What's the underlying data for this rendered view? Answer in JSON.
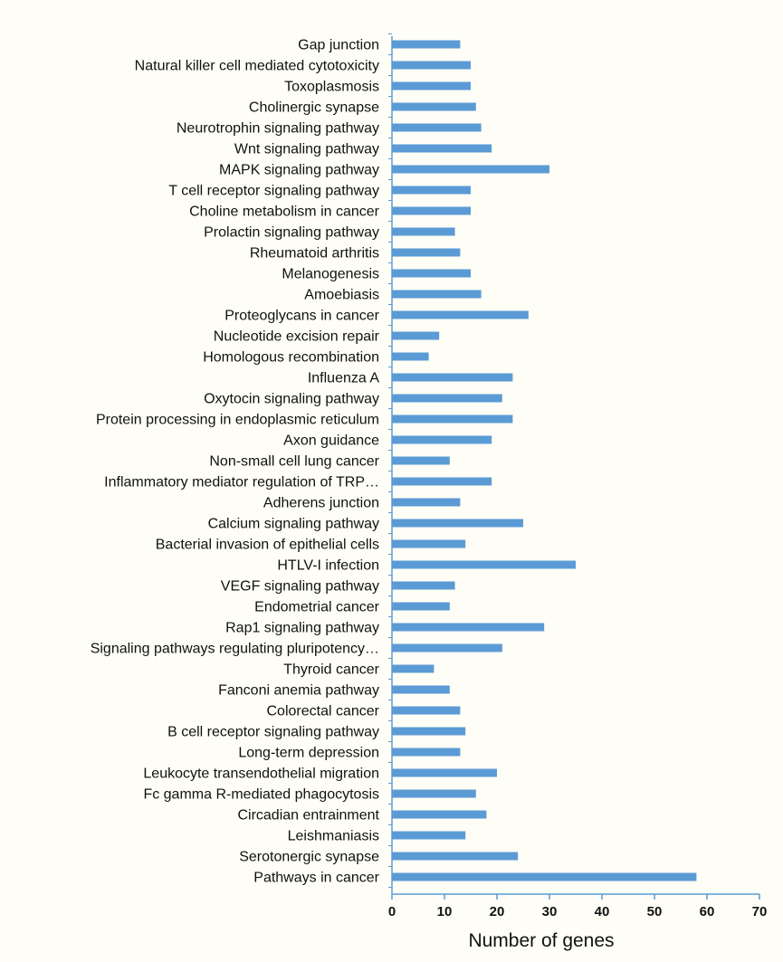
{
  "chart_data": {
    "type": "bar",
    "orientation": "horizontal",
    "title": "",
    "xlabel": "Number of genes",
    "ylabel": "",
    "xlim": [
      0,
      70
    ],
    "xticks": [
      0,
      10,
      20,
      30,
      40,
      50,
      60,
      70
    ],
    "grid": false,
    "legend": "none",
    "bar_color": "#5b9bd5",
    "categories": [
      "Gap junction",
      "Natural killer cell mediated cytotoxicity",
      "Toxoplasmosis",
      "Cholinergic synapse",
      "Neurotrophin signaling pathway",
      "Wnt signaling pathway",
      "MAPK signaling pathway",
      "T cell receptor signaling pathway",
      "Choline metabolism in cancer",
      "Prolactin signaling pathway",
      "Rheumatoid arthritis",
      "Melanogenesis",
      "Amoebiasis",
      "Proteoglycans in cancer",
      "Nucleotide excision repair",
      "Homologous recombination",
      "Influenza A",
      "Oxytocin signaling pathway",
      "Protein processing in endoplasmic reticulum",
      "Axon guidance",
      "Non-small cell lung cancer",
      "Inflammatory mediator regulation of TRP…",
      "Adherens junction",
      "Calcium signaling pathway",
      "Bacterial invasion of epithelial cells",
      "HTLV-I infection",
      "VEGF signaling pathway",
      "Endometrial cancer",
      "Rap1 signaling pathway",
      "Signaling pathways regulating pluripotency…",
      "Thyroid cancer",
      "Fanconi anemia pathway",
      "Colorectal cancer",
      "B cell receptor signaling pathway",
      "Long-term depression",
      "Leukocyte transendothelial migration",
      "Fc gamma R-mediated phagocytosis",
      "Circadian entrainment",
      "Leishmaniasis",
      "Serotonergic synapse",
      "Pathways in cancer"
    ],
    "values": [
      13,
      15,
      15,
      16,
      17,
      19,
      30,
      15,
      15,
      12,
      13,
      15,
      17,
      26,
      9,
      7,
      23,
      21,
      23,
      19,
      11,
      19,
      13,
      25,
      14,
      35,
      12,
      11,
      29,
      21,
      8,
      11,
      13,
      14,
      13,
      20,
      16,
      18,
      14,
      24,
      58
    ]
  }
}
